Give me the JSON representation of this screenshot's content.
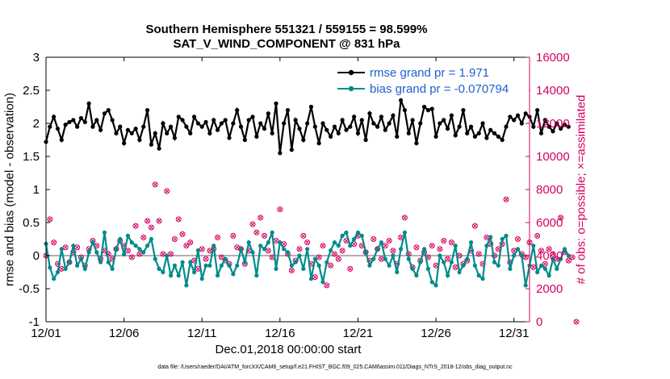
{
  "title_line1": "Southern Hemisphere 551321 / 559155 = 98.599%",
  "title_line2": "SAT_V_WIND_COMPONENT @ 831 hPa",
  "ylabel_left": "rmse and bias (model - observation)",
  "ylabel_right": "# of obs: o=possible; ×=assimilated",
  "xlabel": "Dec.01,2018 00:00:00 start",
  "footnote": "data file: /Users/raeder/DAI/ATM_forcXX/CAM6_setup/f.e21.FHIST_BGC.f09_025.CAM6assim.011/Diags_NTrS_2018-12/obs_diag_output.nc",
  "colors": {
    "rmse": "#000000",
    "bias": "#008b8b",
    "obs": "#d6005f",
    "zero": "#b0b0b0"
  },
  "chart_data": {
    "type": "line",
    "x_ticks": [
      0,
      5,
      10,
      15,
      20,
      25,
      30
    ],
    "x_tick_labels": [
      "12/01",
      "12/06",
      "12/11",
      "12/16",
      "12/21",
      "12/26",
      "12/31"
    ],
    "xlim": [
      0,
      31
    ],
    "ylim_left": [
      -1,
      3
    ],
    "y_ticks_left": [
      -1,
      -0.5,
      0,
      0.5,
      1,
      1.5,
      2,
      2.5,
      3
    ],
    "y_tick_labels_left": [
      "-1",
      "-0.5",
      "0",
      "0.5",
      "1",
      "1.5",
      "2",
      "2.5",
      "3"
    ],
    "ylim_right": [
      0,
      16000
    ],
    "y_ticks_right": [
      0,
      2000,
      4000,
      6000,
      8000,
      10000,
      12000,
      14000,
      16000
    ],
    "y_tick_labels_right": [
      "0",
      "2000",
      "4000",
      "6000",
      "8000",
      "10000",
      "12000",
      "14000",
      "16000"
    ],
    "legend": [
      {
        "name": "rmse grand pr = 1.971",
        "series": "rmse"
      },
      {
        "name": "bias grand pr = -0.070794",
        "series": "bias"
      }
    ],
    "series": [
      {
        "name": "rmse",
        "values": [
          1.72,
          1.95,
          2.1,
          1.92,
          1.75,
          1.98,
          2.02,
          2.05,
          1.95,
          2.08,
          2.02,
          2.3,
          1.95,
          2.05,
          1.9,
          2.15,
          2.2,
          2.05,
          1.85,
          1.95,
          1.7,
          1.9,
          1.85,
          1.92,
          1.75,
          1.95,
          2.2,
          1.68,
          1.85,
          1.62,
          2.0,
          1.85,
          1.95,
          1.78,
          2.1,
          2.05,
          1.95,
          1.85,
          2.1,
          2.0,
          1.95,
          2.02,
          1.85,
          2.05,
          1.9,
          2.0,
          2.05,
          1.78,
          2.0,
          2.2,
          1.95,
          1.75,
          2.05,
          2.1,
          1.8,
          2.0,
          1.92,
          2.15,
          1.85,
          2.3,
          1.55,
          2.0,
          2.2,
          1.6,
          2.05,
          1.92,
          1.75,
          2.0,
          2.25,
          1.95,
          1.7,
          2.0,
          1.9,
          1.8,
          1.95,
          1.85,
          2.05,
          1.9,
          1.95,
          2.1,
          1.85,
          2.05,
          1.75,
          2.15,
          2.0,
          1.95,
          2.1,
          1.9,
          2.0,
          2.12,
          1.8,
          2.35,
          2.2,
          1.85,
          2.05,
          1.7,
          2.0,
          2.25,
          2.2,
          2.22,
          1.8,
          2.0,
          2.05,
          1.92,
          2.12,
          1.82,
          1.95,
          2.2,
          1.85,
          1.95,
          1.8,
          1.85,
          2.0,
          1.78,
          1.9,
          1.85,
          1.8,
          1.75,
          1.95,
          2.1,
          2.05,
          2.12,
          2.0,
          2.15,
          2.1,
          1.95,
          2.2,
          1.85,
          2.05,
          1.95,
          1.88,
          2.0,
          1.92,
          1.98,
          1.95
        ],
        "color": "#000000",
        "marker": "filled-circle"
      },
      {
        "name": "bias",
        "values": [
          0.18,
          -0.18,
          -0.35,
          -0.25,
          0.1,
          -0.2,
          -0.1,
          0.15,
          -0.15,
          -0.05,
          -0.2,
          0.05,
          0.2,
          0.05,
          -0.1,
          0.35,
          -0.1,
          -0.2,
          0.1,
          0.25,
          0.02,
          0.3,
          0.2,
          0.15,
          0.1,
          0.05,
          0.15,
          0.25,
          -0.05,
          -0.2,
          -0.25,
          0.0,
          -0.3,
          -0.15,
          -0.3,
          -0.1,
          -0.45,
          -0.1,
          -0.25,
          0.08,
          -0.35,
          -0.15,
          -0.15,
          0.15,
          -0.3,
          -0.15,
          -0.05,
          -0.15,
          -0.28,
          -0.15,
          0.1,
          -0.1,
          0.2,
          0.05,
          -0.3,
          0.15,
          0.1,
          0.2,
          0.35,
          -0.2,
          0.2,
          0.1,
          0.05,
          -0.15,
          -0.1,
          0.0,
          -0.2,
          0.1,
          -0.35,
          -0.05,
          -0.15,
          -0.4,
          -0.1,
          0.08,
          0.2,
          0.15,
          0.3,
          0.35,
          0.15,
          0.25,
          0.35,
          0.3,
          0.05,
          -0.15,
          -0.05,
          0.1,
          0.2,
          -0.05,
          -0.15,
          0.0,
          -0.25,
          0.1,
          0.35,
          -0.05,
          -0.2,
          -0.3,
          -0.1,
          0.1,
          -0.2,
          -0.4,
          -0.45,
          0.0,
          -0.1,
          -0.3,
          -0.1,
          0.15,
          -0.25,
          -0.15,
          -0.05,
          0.2,
          -0.15,
          -0.3,
          -0.35,
          0.15,
          0.28,
          -0.1,
          -0.15,
          0.25,
          0.3,
          -0.2,
          0.0,
          0.1,
          0.0,
          -0.45,
          -0.15,
          0.15,
          -0.25,
          -0.15,
          -0.2,
          -0.3,
          -0.05,
          -0.2,
          -0.05,
          0.1,
          0.0
        ],
        "color": "#008b8b",
        "marker": "filled-circle"
      },
      {
        "name": "obs possible",
        "values": [
          4000,
          6200,
          4800,
          3500,
          3200,
          4500,
          3600,
          4200,
          4500,
          3900,
          3400,
          4400,
          4900,
          4600,
          3800,
          4300,
          4100,
          3800,
          4400,
          4900,
          4600,
          4300,
          3900,
          5800,
          4100,
          5100,
          6100,
          5700,
          8300,
          6100,
          4100,
          7900,
          4100,
          5000,
          6200,
          5300,
          4600,
          4800,
          3700,
          3200,
          4400,
          3800,
          4300,
          4400,
          5100,
          3900,
          3700,
          3500,
          5200,
          4500,
          4400,
          3500,
          4300,
          5900,
          5400,
          6300,
          5200,
          4300,
          3900,
          4900,
          6800,
          4700,
          4100,
          3100,
          3700,
          4400,
          5200,
          4800,
          3500,
          2700,
          3900,
          4600,
          2200,
          3400,
          4100,
          3800,
          4300,
          4900,
          3200,
          4700,
          5200,
          4600,
          4200,
          3700,
          5000,
          4400,
          3800,
          4600,
          4900,
          4300,
          3500,
          5100,
          6300,
          4100,
          3300,
          4500,
          3700,
          4200,
          3900,
          4600,
          3400,
          4400,
          4900,
          3800,
          4800,
          3300,
          4000,
          3500,
          3700,
          4300,
          5800,
          4100,
          3500,
          5100,
          4700,
          4000,
          4400,
          4700,
          7400,
          3600,
          4300,
          5000,
          4100,
          3900,
          4800,
          3300,
          5200,
          4300,
          3500,
          4400,
          4100,
          3800,
          6300,
          4200,
          3700,
          3900,
          0
        ],
        "color": "#d6005f",
        "marker": "open-circle"
      }
    ]
  }
}
